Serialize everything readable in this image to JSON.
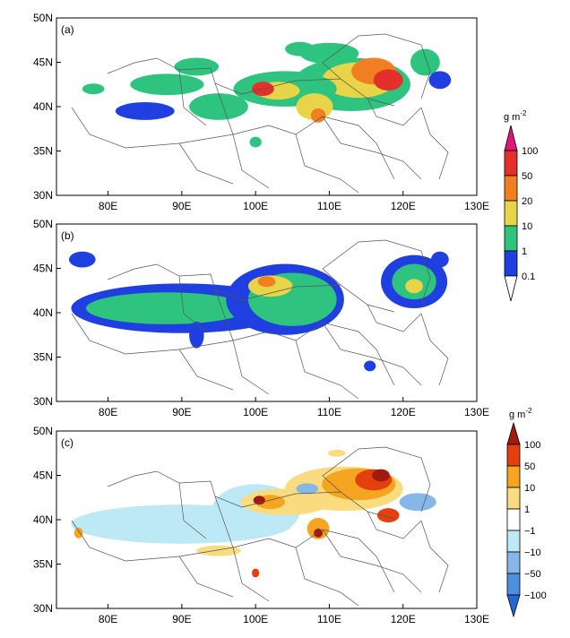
{
  "chart_data": [
    {
      "type": "heatmap",
      "panel_label": "(a)",
      "x_ticks": [
        "80E",
        "90E",
        "100E",
        "110E",
        "120E",
        "130E"
      ],
      "y_ticks": [
        "50N",
        "45N",
        "40N",
        "35N",
        "30N"
      ],
      "xlim": [
        73,
        130
      ],
      "ylim": [
        30,
        50
      ],
      "blobs": [
        {
          "lon": 113,
          "lat": 42.5,
          "rx": 8,
          "ry": 3,
          "level": 2
        },
        {
          "lon": 114,
          "lat": 43,
          "rx": 5,
          "ry": 2,
          "level": 3
        },
        {
          "lon": 116,
          "lat": 44,
          "rx": 3,
          "ry": 1.5,
          "level": 4
        },
        {
          "lon": 118,
          "lat": 43,
          "rx": 2,
          "ry": 1.2,
          "level": 5
        },
        {
          "lon": 104,
          "lat": 42,
          "rx": 7,
          "ry": 2,
          "level": 2
        },
        {
          "lon": 103,
          "lat": 41.8,
          "rx": 3,
          "ry": 1,
          "level": 3
        },
        {
          "lon": 101,
          "lat": 42,
          "rx": 1.5,
          "ry": 0.8,
          "level": 5
        },
        {
          "lon": 108,
          "lat": 40,
          "rx": 2.5,
          "ry": 1.5,
          "level": 3
        },
        {
          "lon": 108.5,
          "lat": 39,
          "rx": 1,
          "ry": 0.8,
          "level": 4
        },
        {
          "lon": 88,
          "lat": 42.5,
          "rx": 5,
          "ry": 1.2,
          "level": 2
        },
        {
          "lon": 85,
          "lat": 39.5,
          "rx": 4,
          "ry": 1,
          "level": 1
        },
        {
          "lon": 95,
          "lat": 40,
          "rx": 4,
          "ry": 1.5,
          "level": 2
        },
        {
          "lon": 92,
          "lat": 44.5,
          "rx": 3,
          "ry": 1,
          "level": 2
        },
        {
          "lon": 123,
          "lat": 45,
          "rx": 2,
          "ry": 1.5,
          "level": 2
        },
        {
          "lon": 125,
          "lat": 43,
          "rx": 1.5,
          "ry": 1,
          "level": 1
        },
        {
          "lon": 100,
          "lat": 36,
          "rx": 0.8,
          "ry": 0.6,
          "level": 2
        },
        {
          "lon": 78,
          "lat": 42,
          "rx": 1.5,
          "ry": 0.6,
          "level": 2
        },
        {
          "lon": 110,
          "lat": 46,
          "rx": 4,
          "ry": 1.2,
          "level": 2
        },
        {
          "lon": 106,
          "lat": 46.5,
          "rx": 2,
          "ry": 0.8,
          "level": 2
        }
      ]
    },
    {
      "type": "heatmap",
      "panel_label": "(b)",
      "x_ticks": [
        "80E",
        "90E",
        "100E",
        "110E",
        "120E",
        "130E"
      ],
      "y_ticks": [
        "50N",
        "45N",
        "40N",
        "35N",
        "30N"
      ],
      "xlim": [
        73,
        130
      ],
      "ylim": [
        30,
        50
      ],
      "blobs": [
        {
          "lon": 90,
          "lat": 40.5,
          "rx": 15,
          "ry": 2.8,
          "level": 1
        },
        {
          "lon": 88,
          "lat": 40.5,
          "rx": 11,
          "ry": 1.8,
          "level": 2
        },
        {
          "lon": 104,
          "lat": 41.5,
          "rx": 8,
          "ry": 4,
          "level": 1
        },
        {
          "lon": 105,
          "lat": 41.5,
          "rx": 6,
          "ry": 3,
          "level": 2
        },
        {
          "lon": 102,
          "lat": 43,
          "rx": 3,
          "ry": 1.2,
          "level": 3
        },
        {
          "lon": 101.5,
          "lat": 43.5,
          "rx": 1.2,
          "ry": 0.6,
          "level": 4
        },
        {
          "lon": 121.5,
          "lat": 43.5,
          "rx": 4.5,
          "ry": 3,
          "level": 1
        },
        {
          "lon": 121.5,
          "lat": 43.5,
          "rx": 3,
          "ry": 2,
          "level": 2
        },
        {
          "lon": 121.5,
          "lat": 43,
          "rx": 1.2,
          "ry": 0.8,
          "level": 3
        },
        {
          "lon": 76.5,
          "lat": 46,
          "rx": 1.8,
          "ry": 0.9,
          "level": 1
        },
        {
          "lon": 92,
          "lat": 37.5,
          "rx": 1,
          "ry": 1.5,
          "level": 1
        },
        {
          "lon": 115.5,
          "lat": 34,
          "rx": 0.8,
          "ry": 0.6,
          "level": 1
        },
        {
          "lon": 125,
          "lat": 46,
          "rx": 1.2,
          "ry": 0.9,
          "level": 1
        }
      ]
    },
    {
      "type": "heatmap",
      "panel_label": "(c)",
      "x_ticks": [
        "80E",
        "90E",
        "100E",
        "110E",
        "120E",
        "130E"
      ],
      "y_ticks": [
        "50N",
        "45N",
        "40N",
        "35N",
        "30N"
      ],
      "xlim": [
        73,
        130
      ],
      "ylim": [
        30,
        50
      ],
      "blobs": [
        {
          "lon": 90,
          "lat": 39.5,
          "rx": 15,
          "ry": 2.2,
          "level": -1
        },
        {
          "lon": 100,
          "lat": 41,
          "rx": 6,
          "ry": 3,
          "level": -1
        },
        {
          "lon": 112,
          "lat": 43.5,
          "rx": 8,
          "ry": 2.5,
          "level": 1
        },
        {
          "lon": 114,
          "lat": 44,
          "rx": 5,
          "ry": 1.8,
          "level": 2
        },
        {
          "lon": 116,
          "lat": 44.5,
          "rx": 2.5,
          "ry": 1.2,
          "level": 3
        },
        {
          "lon": 117,
          "lat": 45,
          "rx": 1.2,
          "ry": 0.7,
          "level": 4
        },
        {
          "lon": 104,
          "lat": 42,
          "rx": 6,
          "ry": 1.5,
          "level": 1
        },
        {
          "lon": 102,
          "lat": 42,
          "rx": 2,
          "ry": 0.8,
          "level": 2
        },
        {
          "lon": 100.5,
          "lat": 42.2,
          "rx": 0.8,
          "ry": 0.5,
          "level": 4
        },
        {
          "lon": 108.5,
          "lat": 39,
          "rx": 1.5,
          "ry": 1.2,
          "level": 2
        },
        {
          "lon": 108.5,
          "lat": 38.5,
          "rx": 0.6,
          "ry": 0.5,
          "level": 4
        },
        {
          "lon": 122,
          "lat": 42,
          "rx": 2.5,
          "ry": 1,
          "level": -2
        },
        {
          "lon": 107,
          "lat": 43.5,
          "rx": 1.5,
          "ry": 0.6,
          "level": -2
        },
        {
          "lon": 95,
          "lat": 36.5,
          "rx": 3,
          "ry": 0.6,
          "level": 1
        },
        {
          "lon": 100,
          "lat": 34,
          "rx": 0.5,
          "ry": 0.5,
          "level": 3
        },
        {
          "lon": 118,
          "lat": 40.5,
          "rx": 1.5,
          "ry": 0.8,
          "level": 3
        },
        {
          "lon": 76,
          "lat": 38.5,
          "rx": 0.6,
          "ry": 0.6,
          "level": 2
        },
        {
          "lon": 111,
          "lat": 47.5,
          "rx": 1.2,
          "ry": 0.4,
          "level": 1
        }
      ]
    }
  ],
  "legend_top": {
    "unit_base": "g m",
    "unit_exp": "-2",
    "labels": [
      "100",
      "50",
      "20",
      "10",
      "1",
      "0.1"
    ],
    "colors": [
      "#e0157a",
      "#e3302b",
      "#f07f21",
      "#e8d448",
      "#2ec47f",
      "#1f3fe0"
    ]
  },
  "legend_bottom": {
    "unit_base": "g m",
    "unit_exp": "-2",
    "labels": [
      "100",
      "50",
      "10",
      "1",
      "−1",
      "−10",
      "−50",
      "−100"
    ],
    "colors": [
      "#a01a10",
      "#e4400f",
      "#f5a51f",
      "#f9dc80",
      "#ffffff",
      "#bde8f5",
      "#87b7e8",
      "#4f8fe0",
      "#2468d8"
    ]
  },
  "colors": {
    "pos_levels": {
      "1": "#1f3fe0",
      "2": "#2ec47f",
      "3": "#e8d448",
      "4": "#f07f21",
      "5": "#e3302b"
    },
    "diff_levels": {
      "-2": "#87b7e8",
      "-1": "#bde8f5",
      "1": "#f9dc80",
      "2": "#f5a51f",
      "3": "#e4400f",
      "4": "#a01a10"
    }
  }
}
